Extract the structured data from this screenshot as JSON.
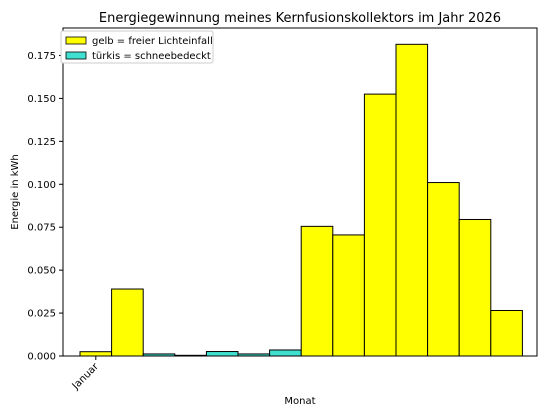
{
  "chart_data": {
    "type": "bar",
    "title": "Energiegewinnung meines Kernfusionskollektors im Jahr 2026",
    "xlabel": "Monat",
    "ylabel": "Energie in kWh",
    "x_tick_labels": [
      "Januar"
    ],
    "ylim": [
      0,
      0.191
    ],
    "yticks": [
      0.0,
      0.025,
      0.05,
      0.075,
      0.1,
      0.125,
      0.15,
      0.175
    ],
    "ytick_labels": [
      "0.000",
      "0.025",
      "0.050",
      "0.075",
      "0.100",
      "0.125",
      "0.150",
      "0.175"
    ],
    "grid": false,
    "legend_position": "top-left",
    "legend": [
      {
        "label": "gelb = freier Lichteinfall",
        "color": "#ffff00"
      },
      {
        "label": "türkis = schneebedeckt",
        "color": "#40e0d0"
      }
    ],
    "bars": [
      {
        "value": 0.0025,
        "color": "#ffff00"
      },
      {
        "value": 0.039,
        "color": "#ffff00"
      },
      {
        "value": 0.0012,
        "color": "#40e0d0"
      },
      {
        "value": 0.0004,
        "color": "#40e0d0"
      },
      {
        "value": 0.0026,
        "color": "#40e0d0"
      },
      {
        "value": 0.0012,
        "color": "#40e0d0"
      },
      {
        "value": 0.0035,
        "color": "#40e0d0"
      },
      {
        "value": 0.0755,
        "color": "#ffff00"
      },
      {
        "value": 0.0705,
        "color": "#ffff00"
      },
      {
        "value": 0.1525,
        "color": "#ffff00"
      },
      {
        "value": 0.1815,
        "color": "#ffff00"
      },
      {
        "value": 0.101,
        "color": "#ffff00"
      },
      {
        "value": 0.0795,
        "color": "#ffff00"
      },
      {
        "value": 0.0265,
        "color": "#ffff00"
      }
    ]
  }
}
